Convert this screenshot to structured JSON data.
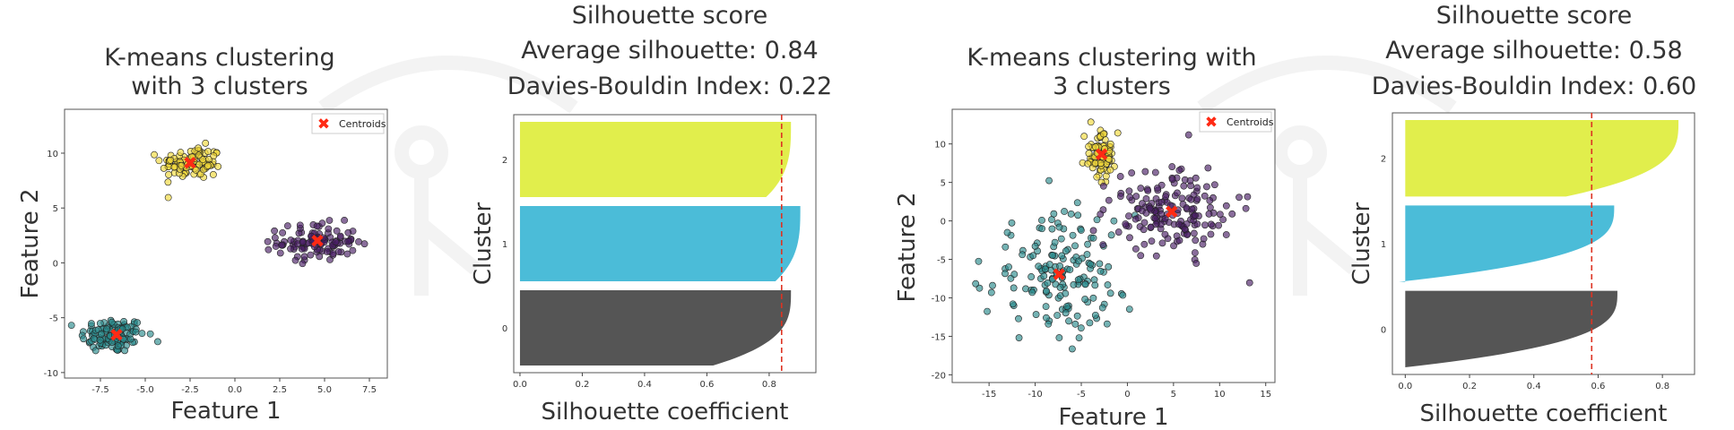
{
  "colors": {
    "cluster0": "#2a8a8c",
    "cluster1": "#f1d93a",
    "cluster2": "#4a1f66",
    "centroid": "#ff2a14",
    "sil_bar0": "#555555",
    "sil_bar1": "#4bbcd8",
    "sil_bar2": "#e1ee4c",
    "avg_line": "#dd3322",
    "watermark": "#f3f3f3"
  },
  "chart_data": [
    {
      "type": "scatter",
      "title_lines": [
        "K-means clustering",
        "with 3 clusters"
      ],
      "xlabel": "Feature 1",
      "ylabel": "Feature 2",
      "xlim": [
        -9.5,
        8.5
      ],
      "ylim": [
        -10.5,
        14
      ],
      "xticks": [
        -7.5,
        -5.0,
        -2.5,
        0.0,
        2.5,
        5.0,
        7.5
      ],
      "xtick_labels": [
        "-7.5",
        "-5.0",
        "-2.5",
        "0.0",
        "2.5",
        "5.0",
        "7.5"
      ],
      "yticks": [
        -10,
        -5,
        0,
        5,
        10
      ],
      "ytick_labels": [
        "-10",
        "-5",
        "0",
        "5",
        "10"
      ],
      "legend": {
        "label": "Centroids",
        "position": "top-right"
      },
      "clusters": [
        {
          "cluster": 0,
          "center": [
            -6.8,
            -6.6
          ],
          "spread": [
            0.9,
            0.8
          ],
          "count": 120
        },
        {
          "cluster": 1,
          "center": [
            -2.4,
            9.1
          ],
          "spread": [
            0.85,
            0.75
          ],
          "count": 110
        },
        {
          "cluster": 2,
          "center": [
            4.6,
            1.9
          ],
          "spread": [
            1.1,
            0.85
          ],
          "count": 110
        }
      ],
      "centroids": [
        [
          -6.6,
          -6.6
        ],
        [
          -2.5,
          9.1
        ],
        [
          4.6,
          2.0
        ]
      ]
    },
    {
      "type": "bar",
      "title_lines": [
        "Silhouette score",
        "Average silhouette: 0.84",
        "Davies-Bouldin Index: 0.22"
      ],
      "xlabel": "Silhouette coefficient",
      "ylabel": "Cluster",
      "xlim": [
        -0.02,
        0.95
      ],
      "xticks": [
        0.0,
        0.2,
        0.4,
        0.6,
        0.8
      ],
      "xtick_labels": [
        "0.0",
        "0.2",
        "0.4",
        "0.6",
        "0.8"
      ],
      "cluster_labels": [
        "0",
        "1",
        "2"
      ],
      "average": 0.84,
      "clusters": [
        {
          "cluster": 0,
          "max": 0.87,
          "min": 0.62
        },
        {
          "cluster": 1,
          "max": 0.9,
          "min": 0.82
        },
        {
          "cluster": 2,
          "max": 0.87,
          "min": 0.79
        }
      ]
    },
    {
      "type": "scatter",
      "title_lines": [
        "K-means clustering with",
        "3 clusters"
      ],
      "xlabel": "Feature 1",
      "ylabel": "Feature 2",
      "xlim": [
        -19,
        16
      ],
      "ylim": [
        -21,
        14.5
      ],
      "xticks": [
        -15,
        -10,
        -5,
        0,
        5,
        10,
        15
      ],
      "xtick_labels": [
        "-15",
        "-10",
        "-5",
        "0",
        "5",
        "10",
        "15"
      ],
      "yticks": [
        -20,
        -15,
        -10,
        -5,
        0,
        5,
        10
      ],
      "ytick_labels": [
        "-20",
        "-15",
        "-10",
        "-5",
        "0",
        "5",
        "10"
      ],
      "legend": {
        "label": "Centroids",
        "position": "top-right"
      },
      "clusters": [
        {
          "cluster": 0,
          "center": [
            -7.5,
            -7.0
          ],
          "spread": [
            3.8,
            4.0
          ],
          "count": 160
        },
        {
          "cluster": 1,
          "center": [
            -2.8,
            8.5
          ],
          "spread": [
            0.9,
            1.4
          ],
          "count": 90
        },
        {
          "cluster": 2,
          "center": [
            4.6,
            1.3
          ],
          "spread": [
            3.2,
            2.8
          ],
          "count": 170
        }
      ],
      "centroids": [
        [
          -7.4,
          -7.0
        ],
        [
          -2.8,
          8.6
        ],
        [
          4.8,
          1.2
        ]
      ]
    },
    {
      "type": "bar",
      "title_lines": [
        "Silhouette score",
        "Average silhouette: 0.58",
        "Davies-Bouldin Index: 0.60"
      ],
      "xlabel": "Silhouette coefficient",
      "ylabel": "Cluster",
      "xlim": [
        -0.04,
        0.9
      ],
      "xticks": [
        0.0,
        0.2,
        0.4,
        0.6,
        0.8
      ],
      "xtick_labels": [
        "0.0",
        "0.2",
        "0.4",
        "0.6",
        "0.8"
      ],
      "cluster_labels": [
        "0",
        "1",
        "2"
      ],
      "average": 0.58,
      "clusters": [
        {
          "cluster": 0,
          "max": 0.66,
          "min": 0.0
        },
        {
          "cluster": 1,
          "max": 0.65,
          "min": -0.02
        },
        {
          "cluster": 2,
          "max": 0.85,
          "min": 0.5
        }
      ]
    }
  ]
}
